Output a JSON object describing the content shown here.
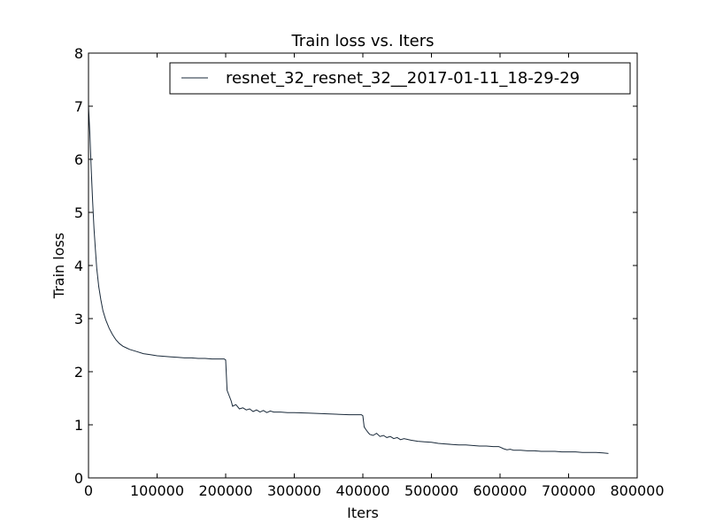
{
  "chart_data": {
    "type": "line",
    "title": "Train loss  vs. Iters",
    "xlabel": "Iters",
    "ylabel": "Train loss",
    "xlim": [
      0,
      800000
    ],
    "ylim": [
      0,
      8
    ],
    "xticks": [
      0,
      100000,
      200000,
      300000,
      400000,
      500000,
      600000,
      700000,
      800000
    ],
    "xtick_labels": [
      "0",
      "100000",
      "200000",
      "300000",
      "400000",
      "500000",
      "600000",
      "700000",
      "800000"
    ],
    "yticks": [
      0,
      1,
      2,
      3,
      4,
      5,
      6,
      7,
      8
    ],
    "ytick_labels": [
      "0",
      "1",
      "2",
      "3",
      "4",
      "5",
      "6",
      "7",
      "8"
    ],
    "grid": false,
    "legend_position": "top-right",
    "line_color": "#1a2a3a",
    "series": [
      {
        "name": "resnet_32_resnet_32__2017-01-11_18-29-29",
        "x": [
          0,
          2000,
          4000,
          6000,
          8000,
          10000,
          12000,
          15000,
          18000,
          21000,
          25000,
          30000,
          35000,
          40000,
          45000,
          50000,
          55000,
          60000,
          70000,
          80000,
          90000,
          100000,
          110000,
          120000,
          130000,
          140000,
          150000,
          160000,
          170000,
          180000,
          190000,
          198000,
          200000,
          202000,
          205000,
          208000,
          210000,
          215000,
          220000,
          225000,
          230000,
          235000,
          240000,
          245000,
          250000,
          255000,
          260000,
          265000,
          270000,
          280000,
          290000,
          300000,
          320000,
          340000,
          360000,
          380000,
          398000,
          400000,
          402000,
          405000,
          408000,
          410000,
          415000,
          420000,
          425000,
          430000,
          435000,
          440000,
          445000,
          450000,
          455000,
          460000,
          470000,
          480000,
          490000,
          500000,
          510000,
          520000,
          530000,
          540000,
          550000,
          560000,
          570000,
          580000,
          590000,
          598000,
          600000,
          605000,
          610000,
          615000,
          620000,
          630000,
          640000,
          650000,
          660000,
          670000,
          680000,
          690000,
          700000,
          710000,
          720000,
          730000,
          740000,
          750000,
          758000
        ],
        "y": [
          7.0,
          6.5,
          5.8,
          5.2,
          4.7,
          4.3,
          3.95,
          3.6,
          3.35,
          3.15,
          2.98,
          2.82,
          2.7,
          2.6,
          2.53,
          2.48,
          2.45,
          2.42,
          2.38,
          2.34,
          2.32,
          2.3,
          2.29,
          2.28,
          2.27,
          2.26,
          2.26,
          2.25,
          2.25,
          2.24,
          2.24,
          2.24,
          2.22,
          1.65,
          1.55,
          1.45,
          1.35,
          1.38,
          1.3,
          1.32,
          1.28,
          1.3,
          1.25,
          1.28,
          1.24,
          1.27,
          1.23,
          1.26,
          1.24,
          1.24,
          1.23,
          1.23,
          1.22,
          1.21,
          1.2,
          1.19,
          1.19,
          1.17,
          0.96,
          0.9,
          0.85,
          0.82,
          0.8,
          0.84,
          0.78,
          0.8,
          0.76,
          0.78,
          0.74,
          0.76,
          0.72,
          0.74,
          0.71,
          0.69,
          0.68,
          0.67,
          0.65,
          0.64,
          0.63,
          0.62,
          0.62,
          0.61,
          0.6,
          0.6,
          0.59,
          0.59,
          0.58,
          0.55,
          0.53,
          0.54,
          0.52,
          0.52,
          0.51,
          0.51,
          0.5,
          0.5,
          0.5,
          0.49,
          0.49,
          0.49,
          0.48,
          0.48,
          0.48,
          0.47,
          0.46
        ]
      }
    ]
  }
}
